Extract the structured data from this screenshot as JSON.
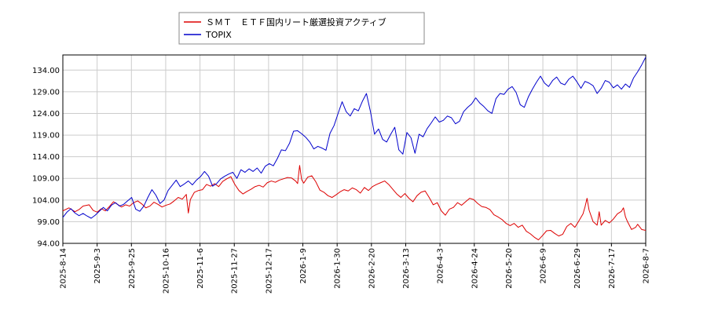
{
  "chart_data": {
    "type": "line",
    "title": "",
    "xlabel": "",
    "ylabel": "",
    "ylim": [
      94.0,
      137.5
    ],
    "yticks": [
      "94.00",
      "99.00",
      "104.00",
      "109.00",
      "114.00",
      "119.00",
      "124.00",
      "129.00",
      "134.00"
    ],
    "xticks": [
      "2025-8-14",
      "2025-9-3",
      "2025-9-25",
      "2025-10-16",
      "2025-11-6",
      "2025-11-27",
      "2025-12-17",
      "2026-1-9",
      "2026-1-30",
      "2026-2-20",
      "2026-3-13",
      "2026-4-3",
      "2026-4-24",
      "2026-5-20",
      "2026-6-9",
      "2026-6-29",
      "2026-7-17",
      "2026-8-7"
    ],
    "grid": true,
    "legend": "top-left",
    "colors": {
      "series1": "#dd0000",
      "series2": "#0000cc"
    },
    "series": [
      {
        "name": "ＳＭＴ　ＥＴＦ国内リート厳選投資アクティブ",
        "color": "#dd0000",
        "points": [
          [
            0,
            101.5
          ],
          [
            3,
            102.2
          ],
          [
            6,
            101.3
          ],
          [
            8,
            101.8
          ],
          [
            10,
            102.6
          ],
          [
            13,
            102.9
          ],
          [
            15,
            101.6
          ],
          [
            17,
            101.2
          ],
          [
            19,
            102.0
          ],
          [
            21,
            101.5
          ],
          [
            23,
            102.5
          ],
          [
            25,
            103.6
          ],
          [
            27,
            103.0
          ],
          [
            29,
            102.4
          ],
          [
            31,
            102.9
          ],
          [
            33,
            102.6
          ],
          [
            35,
            103.4
          ],
          [
            37,
            103.8
          ],
          [
            39,
            103.1
          ],
          [
            41,
            102.2
          ],
          [
            43,
            102.6
          ],
          [
            45,
            103.5
          ],
          [
            47,
            103.0
          ],
          [
            49,
            102.4
          ],
          [
            51,
            102.8
          ],
          [
            53,
            103.1
          ],
          [
            55,
            103.8
          ],
          [
            57,
            104.6
          ],
          [
            59,
            104.2
          ],
          [
            61,
            105.3
          ],
          [
            62,
            101.0
          ],
          [
            63,
            104.1
          ],
          [
            65,
            105.8
          ],
          [
            67,
            106.2
          ],
          [
            69,
            106.4
          ],
          [
            71,
            107.6
          ],
          [
            73,
            107.2
          ],
          [
            75,
            107.8
          ],
          [
            77,
            107.1
          ],
          [
            79,
            108.3
          ],
          [
            81,
            108.9
          ],
          [
            83,
            109.4
          ],
          [
            85,
            107.6
          ],
          [
            87,
            106.2
          ],
          [
            89,
            105.4
          ],
          [
            91,
            106.0
          ],
          [
            93,
            106.5
          ],
          [
            95,
            107.1
          ],
          [
            97,
            107.4
          ],
          [
            99,
            107.0
          ],
          [
            101,
            108.0
          ],
          [
            103,
            108.4
          ],
          [
            105,
            108.1
          ],
          [
            107,
            108.6
          ],
          [
            109,
            108.9
          ],
          [
            111,
            109.2
          ],
          [
            113,
            109.1
          ],
          [
            115,
            108.4
          ],
          [
            116,
            107.8
          ],
          [
            117,
            112.0
          ],
          [
            118,
            108.7
          ],
          [
            119,
            107.9
          ],
          [
            121,
            109.3
          ],
          [
            123,
            109.6
          ],
          [
            125,
            108.2
          ],
          [
            127,
            106.3
          ],
          [
            129,
            105.8
          ],
          [
            131,
            105.0
          ],
          [
            133,
            104.6
          ],
          [
            135,
            105.2
          ],
          [
            137,
            105.9
          ],
          [
            139,
            106.4
          ],
          [
            141,
            106.1
          ],
          [
            143,
            106.8
          ],
          [
            145,
            106.4
          ],
          [
            147,
            105.6
          ],
          [
            149,
            106.9
          ],
          [
            151,
            106.2
          ],
          [
            153,
            107.1
          ],
          [
            155,
            107.6
          ],
          [
            157,
            108.0
          ],
          [
            159,
            108.4
          ],
          [
            161,
            107.6
          ],
          [
            163,
            106.5
          ],
          [
            165,
            105.4
          ],
          [
            167,
            104.6
          ],
          [
            169,
            105.5
          ],
          [
            171,
            104.4
          ],
          [
            173,
            103.6
          ],
          [
            175,
            105.0
          ],
          [
            177,
            105.8
          ],
          [
            179,
            106.1
          ],
          [
            181,
            104.6
          ],
          [
            183,
            102.9
          ],
          [
            185,
            103.4
          ],
          [
            187,
            101.5
          ],
          [
            189,
            100.5
          ],
          [
            191,
            101.9
          ],
          [
            193,
            102.3
          ],
          [
            195,
            103.4
          ],
          [
            197,
            102.8
          ],
          [
            199,
            103.6
          ],
          [
            201,
            104.4
          ],
          [
            203,
            104.1
          ],
          [
            205,
            103.2
          ],
          [
            207,
            102.5
          ],
          [
            209,
            102.3
          ],
          [
            211,
            101.8
          ],
          [
            213,
            100.6
          ],
          [
            215,
            100.1
          ],
          [
            217,
            99.5
          ],
          [
            219,
            98.6
          ],
          [
            221,
            98.1
          ],
          [
            223,
            98.6
          ],
          [
            225,
            97.7
          ],
          [
            227,
            98.2
          ],
          [
            229,
            96.8
          ],
          [
            231,
            96.2
          ],
          [
            233,
            95.4
          ],
          [
            235,
            94.8
          ],
          [
            237,
            95.8
          ],
          [
            239,
            96.9
          ],
          [
            241,
            97.0
          ],
          [
            243,
            96.3
          ],
          [
            245,
            95.7
          ],
          [
            247,
            96.1
          ],
          [
            249,
            97.9
          ],
          [
            251,
            98.6
          ],
          [
            253,
            97.7
          ],
          [
            255,
            99.2
          ],
          [
            257,
            100.8
          ],
          [
            258,
            102.4
          ],
          [
            259,
            104.4
          ],
          [
            260,
            101.7
          ],
          [
            262,
            99.0
          ],
          [
            264,
            98.2
          ],
          [
            265,
            101.3
          ],
          [
            266,
            98.2
          ],
          [
            268,
            99.3
          ],
          [
            270,
            98.7
          ],
          [
            272,
            99.6
          ],
          [
            274,
            100.8
          ],
          [
            276,
            101.4
          ],
          [
            277,
            102.2
          ],
          [
            278,
            100.1
          ],
          [
            279,
            99.0
          ],
          [
            281,
            97.2
          ],
          [
            283,
            97.7
          ],
          [
            284,
            98.4
          ],
          [
            286,
            97.2
          ],
          [
            288,
            97.0
          ]
        ]
      },
      {
        "name": "TOPIX",
        "color": "#0000cc",
        "points": [
          [
            0,
            100.0
          ],
          [
            2,
            101.2
          ],
          [
            4,
            102.0
          ],
          [
            6,
            101.0
          ],
          [
            8,
            100.4
          ],
          [
            10,
            100.9
          ],
          [
            12,
            100.3
          ],
          [
            14,
            99.8
          ],
          [
            16,
            100.5
          ],
          [
            18,
            101.4
          ],
          [
            20,
            102.3
          ],
          [
            22,
            101.5
          ],
          [
            24,
            102.8
          ],
          [
            26,
            103.4
          ],
          [
            28,
            102.6
          ],
          [
            30,
            103.0
          ],
          [
            32,
            103.8
          ],
          [
            34,
            104.6
          ],
          [
            36,
            101.9
          ],
          [
            38,
            101.4
          ],
          [
            40,
            102.6
          ],
          [
            42,
            104.6
          ],
          [
            44,
            106.4
          ],
          [
            46,
            105.1
          ],
          [
            48,
            103.2
          ],
          [
            50,
            104.0
          ],
          [
            52,
            106.2
          ],
          [
            54,
            107.4
          ],
          [
            56,
            108.6
          ],
          [
            58,
            107.1
          ],
          [
            60,
            107.7
          ],
          [
            62,
            108.4
          ],
          [
            64,
            107.5
          ],
          [
            66,
            108.6
          ],
          [
            68,
            109.4
          ],
          [
            70,
            110.6
          ],
          [
            72,
            109.5
          ],
          [
            74,
            107.2
          ],
          [
            76,
            107.8
          ],
          [
            78,
            108.9
          ],
          [
            80,
            109.5
          ],
          [
            82,
            110.0
          ],
          [
            84,
            110.4
          ],
          [
            86,
            109.0
          ],
          [
            88,
            111.0
          ],
          [
            90,
            110.4
          ],
          [
            92,
            111.2
          ],
          [
            94,
            110.6
          ],
          [
            96,
            111.4
          ],
          [
            98,
            110.2
          ],
          [
            100,
            111.8
          ],
          [
            102,
            112.4
          ],
          [
            104,
            111.9
          ],
          [
            106,
            113.6
          ],
          [
            108,
            115.6
          ],
          [
            110,
            115.4
          ],
          [
            112,
            117.1
          ],
          [
            114,
            119.9
          ],
          [
            116,
            120.0
          ],
          [
            118,
            119.3
          ],
          [
            120,
            118.5
          ],
          [
            122,
            117.4
          ],
          [
            124,
            115.8
          ],
          [
            126,
            116.4
          ],
          [
            128,
            116.0
          ],
          [
            130,
            115.5
          ],
          [
            132,
            119.4
          ],
          [
            134,
            121.2
          ],
          [
            136,
            124.0
          ],
          [
            138,
            126.7
          ],
          [
            140,
            124.4
          ],
          [
            142,
            123.4
          ],
          [
            144,
            125.1
          ],
          [
            146,
            124.6
          ],
          [
            148,
            126.8
          ],
          [
            150,
            128.6
          ],
          [
            152,
            124.4
          ],
          [
            154,
            119.2
          ],
          [
            156,
            120.4
          ],
          [
            158,
            118.0
          ],
          [
            160,
            117.4
          ],
          [
            162,
            119.2
          ],
          [
            164,
            120.8
          ],
          [
            166,
            115.6
          ],
          [
            168,
            114.6
          ],
          [
            170,
            119.6
          ],
          [
            172,
            118.4
          ],
          [
            174,
            114.8
          ],
          [
            176,
            119.2
          ],
          [
            178,
            118.6
          ],
          [
            180,
            120.5
          ],
          [
            182,
            121.8
          ],
          [
            184,
            123.2
          ],
          [
            186,
            122.0
          ],
          [
            188,
            122.4
          ],
          [
            190,
            123.4
          ],
          [
            192,
            123.0
          ],
          [
            194,
            121.6
          ],
          [
            196,
            122.2
          ],
          [
            198,
            124.4
          ],
          [
            200,
            125.4
          ],
          [
            202,
            126.2
          ],
          [
            204,
            127.6
          ],
          [
            206,
            126.4
          ],
          [
            208,
            125.6
          ],
          [
            210,
            124.6
          ],
          [
            212,
            124.0
          ],
          [
            214,
            127.4
          ],
          [
            216,
            128.6
          ],
          [
            218,
            128.4
          ],
          [
            220,
            129.6
          ],
          [
            222,
            130.2
          ],
          [
            224,
            128.8
          ],
          [
            226,
            126.0
          ],
          [
            228,
            125.4
          ],
          [
            230,
            127.8
          ],
          [
            232,
            129.6
          ],
          [
            234,
            131.2
          ],
          [
            236,
            132.6
          ],
          [
            238,
            131.0
          ],
          [
            240,
            130.2
          ],
          [
            242,
            131.6
          ],
          [
            244,
            132.4
          ],
          [
            246,
            131.0
          ],
          [
            248,
            130.6
          ],
          [
            250,
            131.9
          ],
          [
            252,
            132.6
          ],
          [
            254,
            131.3
          ],
          [
            256,
            129.8
          ],
          [
            258,
            131.4
          ],
          [
            260,
            131.0
          ],
          [
            262,
            130.4
          ],
          [
            264,
            128.6
          ],
          [
            266,
            129.8
          ],
          [
            268,
            131.6
          ],
          [
            270,
            131.2
          ],
          [
            272,
            129.9
          ],
          [
            274,
            130.6
          ],
          [
            276,
            129.6
          ],
          [
            278,
            130.8
          ],
          [
            280,
            130.0
          ],
          [
            282,
            132.2
          ],
          [
            284,
            133.6
          ],
          [
            286,
            135.2
          ],
          [
            288,
            137.0
          ]
        ]
      }
    ]
  }
}
